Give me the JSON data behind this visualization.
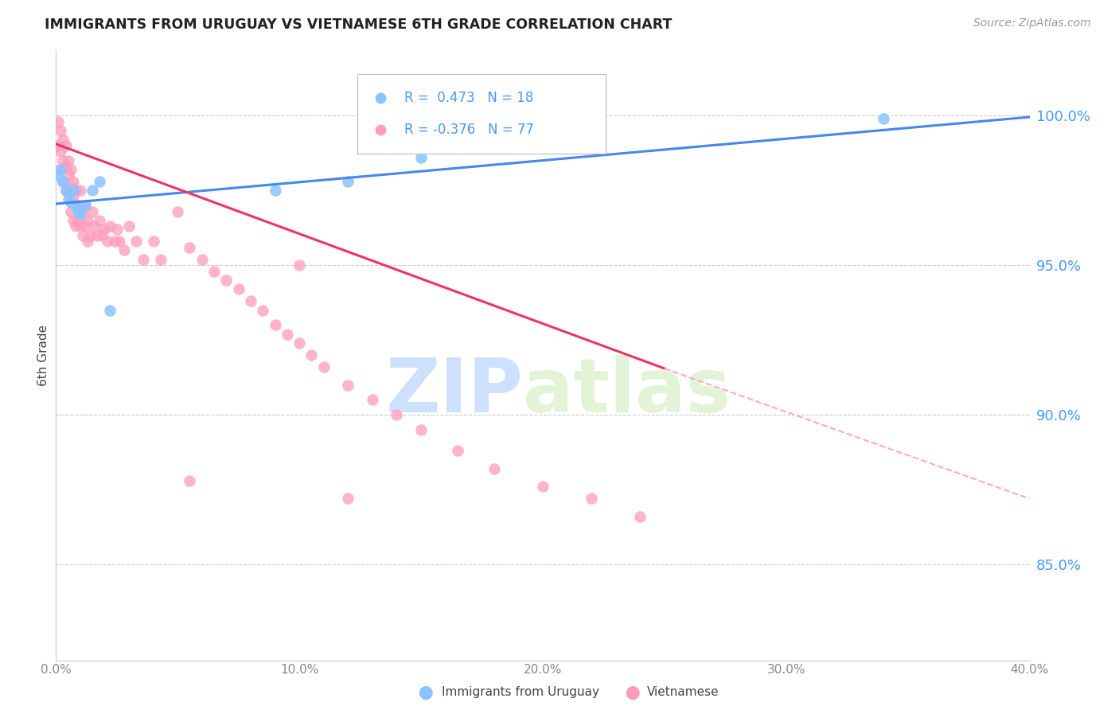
{
  "title": "IMMIGRANTS FROM URUGUAY VS VIETNAMESE 6TH GRADE CORRELATION CHART",
  "source": "Source: ZipAtlas.com",
  "ylabel": "6th Grade",
  "ylabel_ticks": [
    "100.0%",
    "95.0%",
    "90.0%",
    "85.0%"
  ],
  "ylabel_values": [
    1.0,
    0.95,
    0.9,
    0.85
  ],
  "xlim": [
    0.0,
    0.4
  ],
  "ylim": [
    0.818,
    1.022
  ],
  "uruguay_color": "#89C4FF",
  "vietnamese_color": "#FF9BBB",
  "trend_uruguay_color": "#4488EE",
  "trend_vietnamese_color": "#EE3366",
  "trend_ext_color": "#FFAABB",
  "legend_R_uruguay": "R =  0.473",
  "legend_N_uruguay": "N = 18",
  "legend_R_vietnamese": "R = -0.376",
  "legend_N_vietnamese": "N = 77",
  "watermark_zip": "ZIP",
  "watermark_atlas": "atlas",
  "uru_x": [
    0.001,
    0.002,
    0.003,
    0.004,
    0.005,
    0.006,
    0.007,
    0.008,
    0.009,
    0.01,
    0.012,
    0.015,
    0.018,
    0.022,
    0.09,
    0.12,
    0.15,
    0.34
  ],
  "uru_y": [
    0.98,
    0.982,
    0.978,
    0.975,
    0.972,
    0.971,
    0.975,
    0.97,
    0.968,
    0.967,
    0.97,
    0.975,
    0.978,
    0.935,
    0.975,
    0.978,
    0.986,
    0.999
  ],
  "viet_x": [
    0.001,
    0.001,
    0.002,
    0.002,
    0.002,
    0.003,
    0.003,
    0.003,
    0.004,
    0.004,
    0.004,
    0.005,
    0.005,
    0.005,
    0.006,
    0.006,
    0.006,
    0.007,
    0.007,
    0.007,
    0.008,
    0.008,
    0.008,
    0.009,
    0.009,
    0.01,
    0.01,
    0.01,
    0.011,
    0.011,
    0.012,
    0.012,
    0.013,
    0.013,
    0.014,
    0.015,
    0.016,
    0.017,
    0.018,
    0.019,
    0.02,
    0.021,
    0.022,
    0.024,
    0.025,
    0.026,
    0.028,
    0.03,
    0.033,
    0.036,
    0.04,
    0.043,
    0.05,
    0.055,
    0.06,
    0.065,
    0.07,
    0.075,
    0.08,
    0.085,
    0.09,
    0.095,
    0.1,
    0.105,
    0.11,
    0.12,
    0.13,
    0.14,
    0.15,
    0.165,
    0.18,
    0.2,
    0.22,
    0.24,
    0.1,
    0.055,
    0.12
  ],
  "viet_y": [
    0.998,
    0.99,
    0.995,
    0.988,
    0.982,
    0.992,
    0.985,
    0.978,
    0.99,
    0.983,
    0.975,
    0.985,
    0.98,
    0.974,
    0.982,
    0.976,
    0.968,
    0.978,
    0.973,
    0.965,
    0.975,
    0.97,
    0.963,
    0.97,
    0.965,
    0.975,
    0.97,
    0.963,
    0.968,
    0.96,
    0.97,
    0.963,
    0.965,
    0.958,
    0.96,
    0.968,
    0.963,
    0.96,
    0.965,
    0.96,
    0.962,
    0.958,
    0.963,
    0.958,
    0.962,
    0.958,
    0.955,
    0.963,
    0.958,
    0.952,
    0.958,
    0.952,
    0.968,
    0.956,
    0.952,
    0.948,
    0.945,
    0.942,
    0.938,
    0.935,
    0.93,
    0.927,
    0.924,
    0.92,
    0.916,
    0.91,
    0.905,
    0.9,
    0.895,
    0.888,
    0.882,
    0.876,
    0.872,
    0.866,
    0.95,
    0.878,
    0.872
  ],
  "trend_uru_x0": 0.0,
  "trend_uru_y0": 0.9705,
  "trend_uru_x1": 0.4,
  "trend_uru_y1": 0.9995,
  "trend_viet_x0": 0.0,
  "trend_viet_y0": 0.9905,
  "trend_viet_solid_x": 0.25,
  "trend_viet_solid_y": 0.9155,
  "trend_viet_x1": 0.4,
  "trend_viet_y1": 0.872
}
